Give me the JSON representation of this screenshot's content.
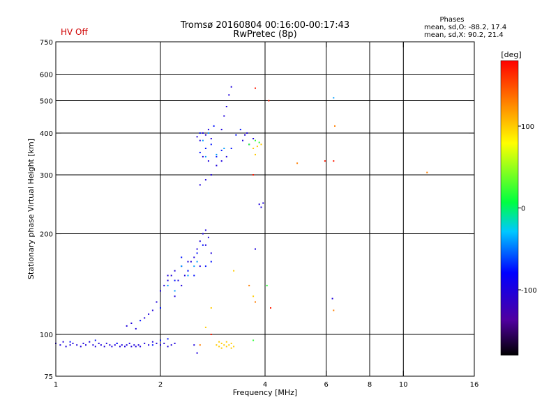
{
  "status": {
    "text": "HV Off",
    "color": "#d00000"
  },
  "stats": {
    "title": "Phases",
    "line_o": "mean, sd,O: -88.2, 17.4",
    "line_x": "mean, sd,X:  90.2, 21.4"
  },
  "chart_data": {
    "type": "scatter",
    "title": "Tromsø 20160804 00:16:00-00:17:43",
    "subtitle": "RwPretec (8p)",
    "xlabel": "Frequency [MHz]",
    "ylabel": "Stationary phase Virtual Height [km]",
    "x_scale": "log",
    "y_scale": "log",
    "xlim": [
      1,
      16
    ],
    "ylim": [
      75,
      750
    ],
    "x_ticks": [
      1,
      2,
      4,
      6,
      8,
      10,
      16
    ],
    "x_tick_labels": [
      "1",
      "2",
      "4",
      "6",
      "8",
      "10",
      "16"
    ],
    "x_gridlines": [
      2,
      4,
      6,
      8,
      10
    ],
    "y_ticks": [
      75,
      100,
      200,
      300,
      400,
      500,
      600,
      750
    ],
    "y_tick_labels": [
      "75",
      "100",
      "200",
      "300",
      "400",
      "500",
      "600",
      "750"
    ],
    "y_gridlines": [
      100,
      200,
      300,
      400,
      500,
      600
    ],
    "grid": true,
    "colorbar": {
      "label": "[deg]",
      "range": [
        -180,
        180
      ],
      "ticks": [
        100,
        0,
        -100
      ],
      "tick_labels": [
        "100",
        "0",
        "-100"
      ]
    },
    "series": [
      {
        "phase_deg": -100,
        "points": [
          [
            1.0,
            94
          ],
          [
            1.03,
            93
          ],
          [
            1.05,
            95
          ],
          [
            1.07,
            92
          ],
          [
            1.1,
            93
          ],
          [
            1.12,
            94
          ],
          [
            1.15,
            93
          ],
          [
            1.18,
            92
          ],
          [
            1.2,
            94
          ],
          [
            1.22,
            93
          ],
          [
            1.25,
            95
          ],
          [
            1.28,
            93
          ],
          [
            1.3,
            92
          ],
          [
            1.33,
            94
          ],
          [
            1.35,
            93
          ],
          [
            1.38,
            92
          ],
          [
            1.4,
            94
          ],
          [
            1.43,
            93
          ],
          [
            1.45,
            92
          ],
          [
            1.48,
            93
          ],
          [
            1.5,
            94
          ],
          [
            1.53,
            92
          ],
          [
            1.55,
            93
          ],
          [
            1.58,
            92
          ],
          [
            1.6,
            93
          ],
          [
            1.63,
            94
          ],
          [
            1.65,
            92
          ],
          [
            1.68,
            93
          ],
          [
            1.7,
            92
          ],
          [
            1.73,
            93
          ],
          [
            1.75,
            92
          ],
          [
            1.8,
            94
          ],
          [
            1.85,
            93
          ],
          [
            1.9,
            95
          ],
          [
            1.95,
            94
          ],
          [
            2.0,
            93
          ],
          [
            2.05,
            94
          ],
          [
            2.1,
            92
          ],
          [
            2.15,
            93
          ],
          [
            2.2,
            94
          ],
          [
            2.5,
            93
          ],
          [
            2.55,
            88
          ],
          [
            1.6,
            106
          ],
          [
            1.65,
            108
          ],
          [
            1.7,
            104
          ],
          [
            1.8,
            112
          ],
          [
            1.85,
            115
          ],
          [
            1.9,
            118
          ],
          [
            1.95,
            125
          ],
          [
            2.0,
            135
          ],
          [
            2.05,
            140
          ],
          [
            2.1,
            145
          ],
          [
            2.15,
            150
          ],
          [
            2.2,
            155
          ],
          [
            2.25,
            145
          ],
          [
            2.3,
            160
          ],
          [
            2.35,
            150
          ],
          [
            2.4,
            155
          ],
          [
            2.45,
            165
          ],
          [
            2.5,
            170
          ],
          [
            2.55,
            180
          ],
          [
            2.6,
            190
          ],
          [
            2.65,
            200
          ],
          [
            2.7,
            205
          ],
          [
            2.75,
            195
          ],
          [
            2.8,
            175
          ],
          [
            2.6,
            160
          ],
          [
            2.3,
            140
          ],
          [
            2.2,
            130
          ],
          [
            2.1,
            150
          ],
          [
            2.4,
            165
          ],
          [
            2.7,
            185
          ],
          [
            2.6,
            280
          ],
          [
            2.7,
            290
          ],
          [
            2.8,
            300
          ],
          [
            2.9,
            320
          ],
          [
            3.0,
            330
          ],
          [
            3.1,
            340
          ],
          [
            2.55,
            390
          ],
          [
            2.6,
            380
          ],
          [
            2.65,
            400
          ],
          [
            2.7,
            395
          ],
          [
            2.75,
            410
          ],
          [
            2.8,
            385
          ],
          [
            2.65,
            340
          ],
          [
            2.75,
            330
          ],
          [
            3.0,
            410
          ],
          [
            3.05,
            450
          ],
          [
            3.1,
            480
          ],
          [
            3.15,
            520
          ],
          [
            3.2,
            550
          ],
          [
            3.45,
            380
          ],
          [
            3.5,
            395
          ],
          [
            3.55,
            400
          ],
          [
            3.6,
            370
          ],
          [
            3.7,
            385
          ],
          [
            3.85,
            245
          ],
          [
            3.9,
            240
          ],
          [
            3.95,
            247
          ],
          [
            6.25,
            128
          ],
          [
            3.75,
            180
          ]
        ]
      },
      {
        "phase_deg": -75,
        "points": [
          [
            1.1,
            95
          ],
          [
            1.3,
            96
          ],
          [
            1.5,
            94
          ],
          [
            1.9,
            93
          ],
          [
            2.0,
            96
          ],
          [
            2.1,
            97
          ],
          [
            2.2,
            145
          ],
          [
            2.3,
            170
          ],
          [
            2.4,
            155
          ],
          [
            2.5,
            150
          ],
          [
            2.55,
            175
          ],
          [
            2.65,
            185
          ],
          [
            2.7,
            160
          ],
          [
            2.8,
            165
          ],
          [
            2.6,
            350
          ],
          [
            2.7,
            360
          ],
          [
            2.8,
            370
          ],
          [
            2.9,
            340
          ],
          [
            3.0,
            355
          ],
          [
            3.2,
            360
          ],
          [
            3.3,
            395
          ],
          [
            3.4,
            410
          ],
          [
            2.6,
            400
          ],
          [
            2.85,
            420
          ],
          [
            1.75,
            110
          ],
          [
            2.0,
            120
          ]
        ]
      },
      {
        "phase_deg": -40,
        "points": [
          [
            2.1,
            140
          ],
          [
            2.3,
            160
          ],
          [
            2.4,
            150
          ],
          [
            2.55,
            165
          ],
          [
            2.65,
            380
          ],
          [
            2.75,
            400
          ],
          [
            2.7,
            340
          ],
          [
            2.9,
            345
          ],
          [
            3.05,
            360
          ],
          [
            6.3,
            510
          ],
          [
            2.2,
            135
          ],
          [
            2.5,
            160
          ]
        ]
      },
      {
        "phase_deg": 20,
        "points": [
          [
            3.6,
            370
          ],
          [
            3.75,
            380
          ],
          [
            3.85,
            375
          ],
          [
            4.05,
            140
          ],
          [
            3.7,
            96
          ]
        ]
      },
      {
        "phase_deg": 100,
        "points": [
          [
            2.9,
            93
          ],
          [
            2.95,
            92
          ],
          [
            3.0,
            94
          ],
          [
            3.05,
            93
          ],
          [
            3.1,
            92
          ],
          [
            3.15,
            93
          ],
          [
            3.2,
            94
          ],
          [
            3.25,
            92
          ],
          [
            2.95,
            95
          ],
          [
            3.1,
            95
          ],
          [
            3.2,
            91
          ],
          [
            3.0,
            91
          ],
          [
            3.7,
            360
          ],
          [
            3.8,
            365
          ],
          [
            3.75,
            345
          ],
          [
            3.9,
            370
          ],
          [
            2.7,
            105
          ],
          [
            3.25,
            155
          ],
          [
            3.7,
            130
          ],
          [
            2.8,
            120
          ]
        ]
      },
      {
        "phase_deg": 130,
        "points": [
          [
            6.35,
            420
          ],
          [
            4.95,
            325
          ],
          [
            11.7,
            305
          ],
          [
            2.6,
            93
          ],
          [
            3.6,
            140
          ],
          [
            3.75,
            125
          ],
          [
            6.3,
            118
          ]
        ]
      },
      {
        "phase_deg": 170,
        "points": [
          [
            3.75,
            545
          ],
          [
            4.1,
            500
          ],
          [
            5.95,
            330
          ],
          [
            6.3,
            330
          ],
          [
            4.15,
            120
          ],
          [
            3.7,
            300
          ],
          [
            2.8,
            100
          ]
        ]
      }
    ]
  }
}
